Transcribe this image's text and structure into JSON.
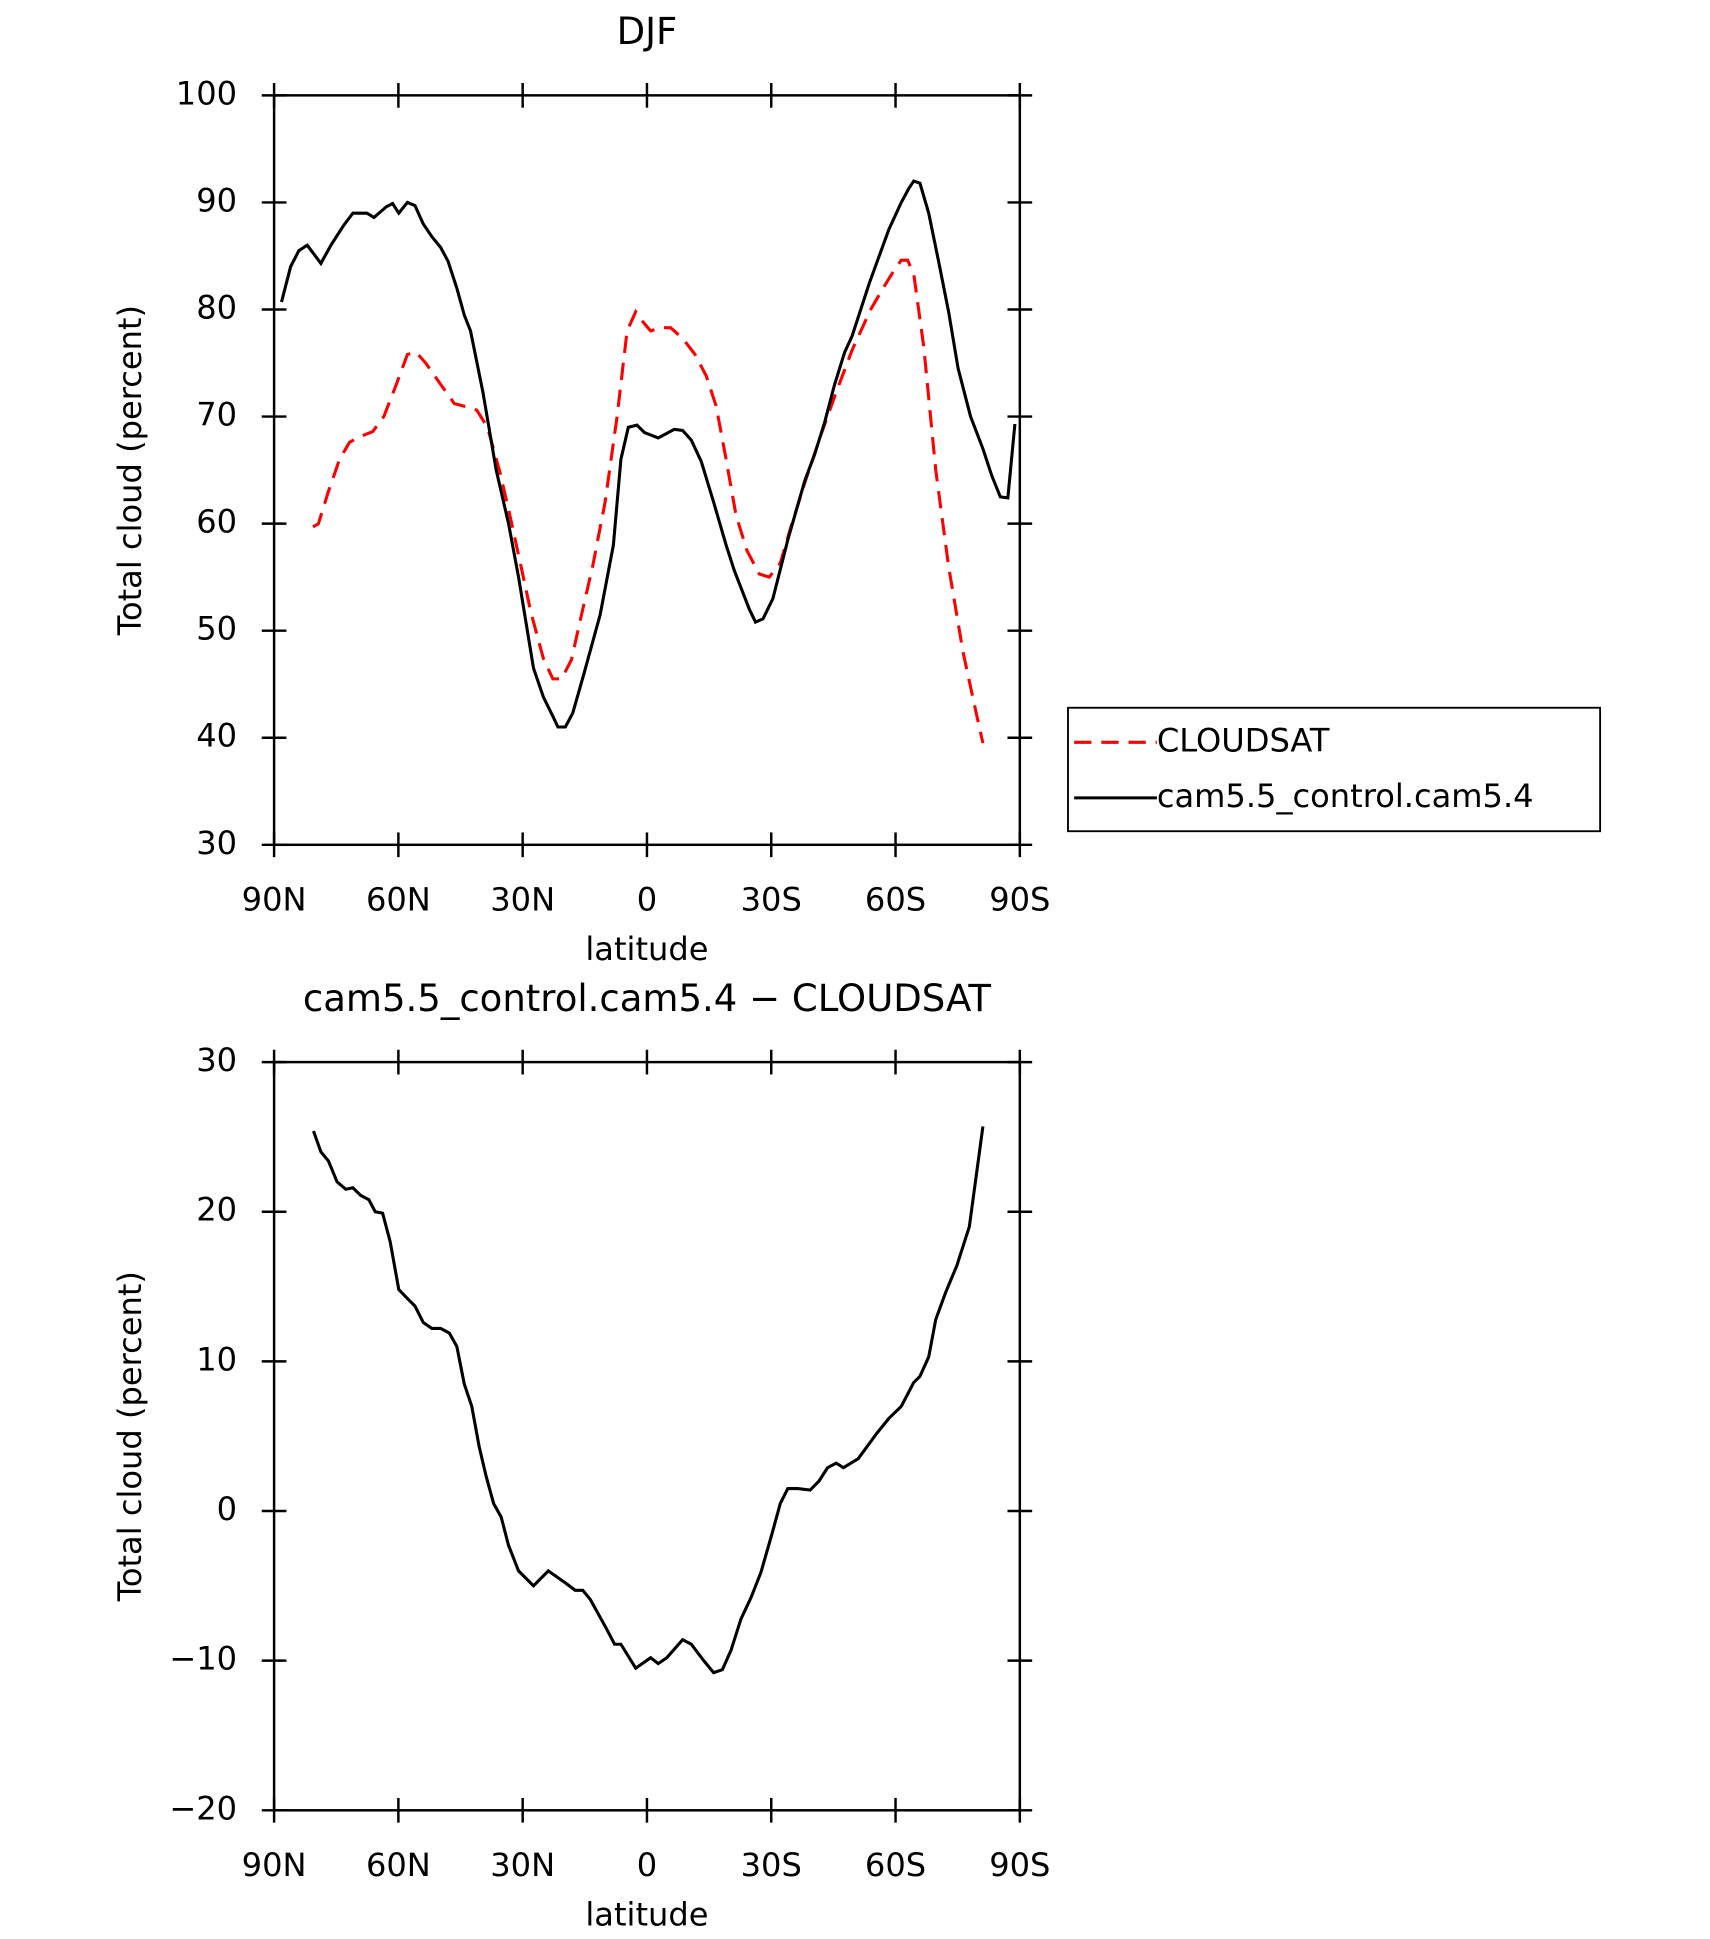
{
  "chart_data": [
    {
      "type": "line",
      "title": "DJF",
      "xlabel": "latitude",
      "ylabel": "Total cloud (percent)",
      "xlim": [
        90,
        -90
      ],
      "ylim": [
        30,
        100
      ],
      "xticks": [
        {
          "value": 90,
          "label": "90N"
        },
        {
          "value": 60,
          "label": "60N"
        },
        {
          "value": 30,
          "label": "30N"
        },
        0,
        {
          "value": -30,
          "label": "30S"
        },
        {
          "value": -60,
          "label": "60S"
        },
        {
          "value": -90,
          "label": "90S"
        }
      ],
      "yticks": [
        30,
        40,
        50,
        60,
        70,
        80,
        90,
        100
      ],
      "legend": "right",
      "series": [
        {
          "name": "CLOUDSAT",
          "color": "#ff0000",
          "dash": true,
          "x": [
            80.6,
            79.3,
            76.9,
            74.2,
            71.8,
            69.4,
            66.2,
            63.5,
            60.5,
            57.8,
            55.7,
            53.4,
            49.8,
            46.5,
            43.5,
            41.1,
            38.5,
            35.5,
            33.1,
            30.4,
            28,
            25,
            22.7,
            20.6,
            18.2,
            16.1,
            13.1,
            10.1,
            7.2,
            4.8,
            2.7,
            0.9,
            -0.9,
            -3.3,
            -5.7,
            -8.6,
            -11.6,
            -14.3,
            -16.7,
            -19.1,
            -21.5,
            -24.1,
            -27.1,
            -29.5,
            -32.2,
            -34.6,
            -38.1,
            -42,
            -45.9,
            -49.5,
            -54,
            -57,
            -59.4,
            -61.4,
            -62.9,
            -64.4,
            -66.8,
            -69.7,
            -72.8,
            -76.3,
            -79.3,
            -81.1
          ],
          "values": [
            59.7,
            60,
            63,
            66,
            67.6,
            68.1,
            68.6,
            70,
            73,
            75.8,
            76,
            75,
            73,
            71.2,
            70.9,
            70.6,
            69,
            64.8,
            60.8,
            56,
            51.7,
            47.4,
            45.5,
            45.5,
            47.3,
            51,
            56,
            62,
            70,
            78,
            79.8,
            78.8,
            78,
            78.3,
            78.3,
            77.3,
            75.8,
            73.8,
            71,
            66,
            60.8,
            57.5,
            55.3,
            55,
            56.3,
            59.5,
            63.8,
            68.3,
            72.5,
            76.2,
            80,
            82,
            83.5,
            84.6,
            84.6,
            83.3,
            76.5,
            65,
            56,
            48,
            42.6,
            39.5
          ]
        },
        {
          "name": "cam5.5_control.cam5.4",
          "color": "#000000",
          "dash": false,
          "x": [
            88.2,
            86,
            84,
            82,
            80.6,
            78.7,
            76.3,
            73.3,
            71,
            67.6,
            65.9,
            62.9,
            61.4,
            59.9,
            57.8,
            56,
            54,
            51.9,
            49.8,
            48,
            45.9,
            44.1,
            42.6,
            39.6,
            36.4,
            33.4,
            31,
            27.4,
            25,
            22.7,
            21.5,
            19.7,
            17.9,
            15.2,
            11.3,
            8.1,
            6.3,
            4.5,
            2.4,
            0.6,
            -2.7,
            -6.6,
            -8.6,
            -10.7,
            -13.1,
            -16.1,
            -19.1,
            -21.1,
            -24.7,
            -26.2,
            -28,
            -30.4,
            -34,
            -38.1,
            -40.5,
            -42.9,
            -45.3,
            -47.7,
            -49.5,
            -53.7,
            -58.4,
            -61.4,
            -63.2,
            -64.4,
            -65.9,
            -68,
            -70.4,
            -72.8,
            -75.1,
            -78.1,
            -81.1,
            -83.2,
            -85.3,
            -87.1,
            -88.8
          ],
          "values": [
            80.7,
            84,
            85.5,
            86,
            85.3,
            84.3,
            86,
            87.8,
            89,
            89,
            88.6,
            89.6,
            89.9,
            89,
            90,
            89.7,
            88,
            86.8,
            85.8,
            84.5,
            82,
            79.5,
            78,
            72.3,
            65,
            60,
            55,
            46.5,
            43.8,
            42,
            41,
            41,
            42.3,
            46,
            51.5,
            58,
            66,
            69,
            69.2,
            68.5,
            68,
            68.8,
            68.7,
            67.8,
            65.8,
            62,
            58,
            55.6,
            52,
            50.8,
            51.1,
            53,
            58.5,
            64,
            66.5,
            69.5,
            73,
            76,
            77.5,
            82.5,
            87.5,
            90,
            91.3,
            92,
            91.8,
            89,
            84.5,
            79.8,
            74.5,
            70,
            67,
            64.5,
            62.5,
            62.4,
            69.3
          ]
        }
      ]
    },
    {
      "type": "line",
      "title": "cam5.5_control.cam5.4 − CLOUDSAT",
      "xlabel": "latitude",
      "ylabel": "Total cloud (percent)",
      "xlim": [
        90,
        -90
      ],
      "ylim": [
        -20,
        30
      ],
      "xticks": [
        {
          "value": 90,
          "label": "90N"
        },
        {
          "value": 60,
          "label": "60N"
        },
        {
          "value": 30,
          "label": "30N"
        },
        0,
        {
          "value": -30,
          "label": "30S"
        },
        {
          "value": -60,
          "label": "60S"
        },
        {
          "value": -90,
          "label": "90S"
        }
      ],
      "yticks": [
        {
          "value": -20,
          "label": "−20"
        },
        {
          "value": -10,
          "label": "−10"
        },
        0,
        10,
        20,
        30
      ],
      "series": [
        {
          "color": "#000000",
          "dash": false,
          "x": [
            80.5,
            78.7,
            76.9,
            74.8,
            72.7,
            71,
            69.1,
            67.1,
            65.6,
            63.8,
            62,
            59.9,
            57.8,
            56,
            54,
            51.9,
            49.8,
            47.7,
            45.9,
            44.1,
            42.3,
            40.5,
            38.8,
            37,
            35.2,
            33.4,
            31,
            27.4,
            23.8,
            19.7,
            17.3,
            15.5,
            13.7,
            10.1,
            7.8,
            6.3,
            2.7,
            -0.9,
            -2.7,
            -4.8,
            -8.6,
            -10.7,
            -13.7,
            -16.1,
            -18.2,
            -20.3,
            -22.7,
            -25.1,
            -27.5,
            -30.1,
            -32.2,
            -34,
            -36.4,
            -39.4,
            -41.5,
            -43.6,
            -45.7,
            -47.4,
            -51,
            -55.5,
            -58.4,
            -61.4,
            -64.4,
            -65.9,
            -68,
            -69.7,
            -72.1,
            -74.8,
            -77.8,
            -81.1
          ],
          "values": [
            25.4,
            24,
            23.4,
            22,
            21.5,
            21.6,
            21.1,
            20.8,
            20,
            19.9,
            18,
            14.8,
            14.2,
            13.7,
            12.6,
            12.2,
            12.2,
            11.9,
            11,
            8.5,
            7,
            4.3,
            2.3,
            0.5,
            -0.4,
            -2.3,
            -4,
            -5,
            -4,
            -4.8,
            -5.3,
            -5.3,
            -5.9,
            -7.7,
            -8.9,
            -8.9,
            -10.5,
            -9.8,
            -10.2,
            -9.8,
            -8.6,
            -8.9,
            -10,
            -10.8,
            -10.6,
            -9.3,
            -7.2,
            -5.8,
            -4.1,
            -1.6,
            0.5,
            1.5,
            1.5,
            1.4,
            2,
            2.9,
            3.2,
            2.9,
            3.5,
            5.2,
            6.2,
            7,
            8.6,
            9,
            10.3,
            12.8,
            14.6,
            16.4,
            19,
            25.7
          ]
        }
      ]
    }
  ]
}
